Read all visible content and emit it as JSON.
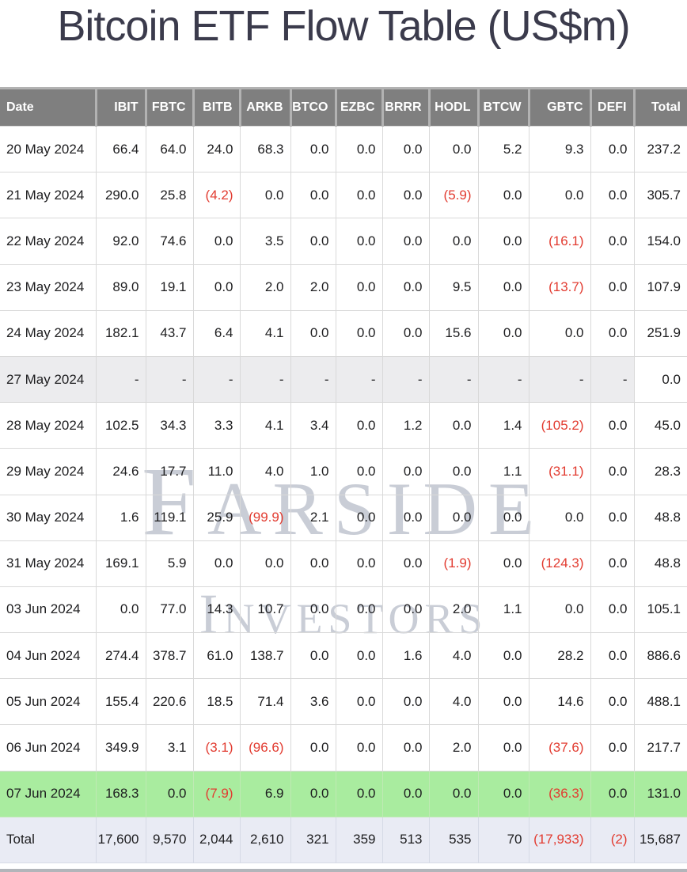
{
  "page": {
    "title": "Bitcoin ETF Flow Table (US$m)"
  },
  "watermark": {
    "line1_first": "F",
    "line1_rest": "ARSIDE",
    "line2_first": "I",
    "line2_rest": "NVESTORS"
  },
  "colors": {
    "header_bg": "#7f7f7f",
    "header_text": "#ffffff",
    "negative_value": "#e23b30",
    "latest_row_bg": "#a9ec9f",
    "holiday_row_bg": "#ececee",
    "total_row_bg": "#e9ebf4",
    "watermark": "#c9cdd6",
    "title_text": "#3b3b4c"
  },
  "chart_data": {
    "type": "table",
    "title": "Bitcoin ETF Flow Table (US$m)",
    "units": "US$m",
    "negative_format": "parentheses-red",
    "columns": [
      "Date",
      "IBIT",
      "FBTC",
      "BITB",
      "ARKB",
      "BTCO",
      "EZBC",
      "BRRR",
      "HODL",
      "BTCW",
      "GBTC",
      "DEFI",
      "Total"
    ],
    "rows": [
      {
        "date": "20 May 2024",
        "style": "default",
        "values": [
          "66.4",
          "64.0",
          "24.0",
          "68.3",
          "0.0",
          "0.0",
          "0.0",
          "0.0",
          "5.2",
          "9.3",
          "0.0",
          "237.2"
        ]
      },
      {
        "date": "21 May 2024",
        "style": "default",
        "values": [
          "290.0",
          "25.8",
          "(4.2)",
          "0.0",
          "0.0",
          "0.0",
          "0.0",
          "(5.9)",
          "0.0",
          "0.0",
          "0.0",
          "305.7"
        ]
      },
      {
        "date": "22 May 2024",
        "style": "default",
        "values": [
          "92.0",
          "74.6",
          "0.0",
          "3.5",
          "0.0",
          "0.0",
          "0.0",
          "0.0",
          "0.0",
          "(16.1)",
          "0.0",
          "154.0"
        ]
      },
      {
        "date": "23 May 2024",
        "style": "default",
        "values": [
          "89.0",
          "19.1",
          "0.0",
          "2.0",
          "2.0",
          "0.0",
          "0.0",
          "9.5",
          "0.0",
          "(13.7)",
          "0.0",
          "107.9"
        ]
      },
      {
        "date": "24 May 2024",
        "style": "default",
        "values": [
          "182.1",
          "43.7",
          "6.4",
          "4.1",
          "0.0",
          "0.0",
          "0.0",
          "15.6",
          "0.0",
          "0.0",
          "0.0",
          "251.9"
        ]
      },
      {
        "date": "27 May 2024",
        "style": "holiday",
        "values": [
          "-",
          "-",
          "-",
          "-",
          "-",
          "-",
          "-",
          "-",
          "-",
          "-",
          "-",
          "0.0"
        ]
      },
      {
        "date": "28 May 2024",
        "style": "default",
        "values": [
          "102.5",
          "34.3",
          "3.3",
          "4.1",
          "3.4",
          "0.0",
          "1.2",
          "0.0",
          "1.4",
          "(105.2)",
          "0.0",
          "45.0"
        ]
      },
      {
        "date": "29 May 2024",
        "style": "default",
        "values": [
          "24.6",
          "17.7",
          "11.0",
          "4.0",
          "1.0",
          "0.0",
          "0.0",
          "0.0",
          "1.1",
          "(31.1)",
          "0.0",
          "28.3"
        ]
      },
      {
        "date": "30 May 2024",
        "style": "default",
        "values": [
          "1.6",
          "119.1",
          "25.9",
          "(99.9)",
          "2.1",
          "0.0",
          "0.0",
          "0.0",
          "0.0",
          "0.0",
          "0.0",
          "48.8"
        ]
      },
      {
        "date": "31 May 2024",
        "style": "default",
        "values": [
          "169.1",
          "5.9",
          "0.0",
          "0.0",
          "0.0",
          "0.0",
          "0.0",
          "(1.9)",
          "0.0",
          "(124.3)",
          "0.0",
          "48.8"
        ]
      },
      {
        "date": "03 Jun 2024",
        "style": "default",
        "values": [
          "0.0",
          "77.0",
          "14.3",
          "10.7",
          "0.0",
          "0.0",
          "0.0",
          "2.0",
          "1.1",
          "0.0",
          "0.0",
          "105.1"
        ]
      },
      {
        "date": "04 Jun 2024",
        "style": "default",
        "values": [
          "274.4",
          "378.7",
          "61.0",
          "138.7",
          "0.0",
          "0.0",
          "1.6",
          "4.0",
          "0.0",
          "28.2",
          "0.0",
          "886.6"
        ]
      },
      {
        "date": "05 Jun 2024",
        "style": "default",
        "values": [
          "155.4",
          "220.6",
          "18.5",
          "71.4",
          "3.6",
          "0.0",
          "0.0",
          "4.0",
          "0.0",
          "14.6",
          "0.0",
          "488.1"
        ]
      },
      {
        "date": "06 Jun 2024",
        "style": "default",
        "values": [
          "349.9",
          "3.1",
          "(3.1)",
          "(96.6)",
          "0.0",
          "0.0",
          "0.0",
          "2.0",
          "0.0",
          "(37.6)",
          "0.0",
          "217.7"
        ]
      },
      {
        "date": "07 Jun 2024",
        "style": "latest",
        "values": [
          "168.3",
          "0.0",
          "(7.9)",
          "6.9",
          "0.0",
          "0.0",
          "0.0",
          "0.0",
          "0.0",
          "(36.3)",
          "0.0",
          "131.0"
        ]
      },
      {
        "date": "Total",
        "style": "total",
        "values": [
          "17,600",
          "9,570",
          "2,044",
          "2,610",
          "321",
          "359",
          "513",
          "535",
          "70",
          "(17,933)",
          "(2)",
          "15,687"
        ]
      }
    ]
  }
}
